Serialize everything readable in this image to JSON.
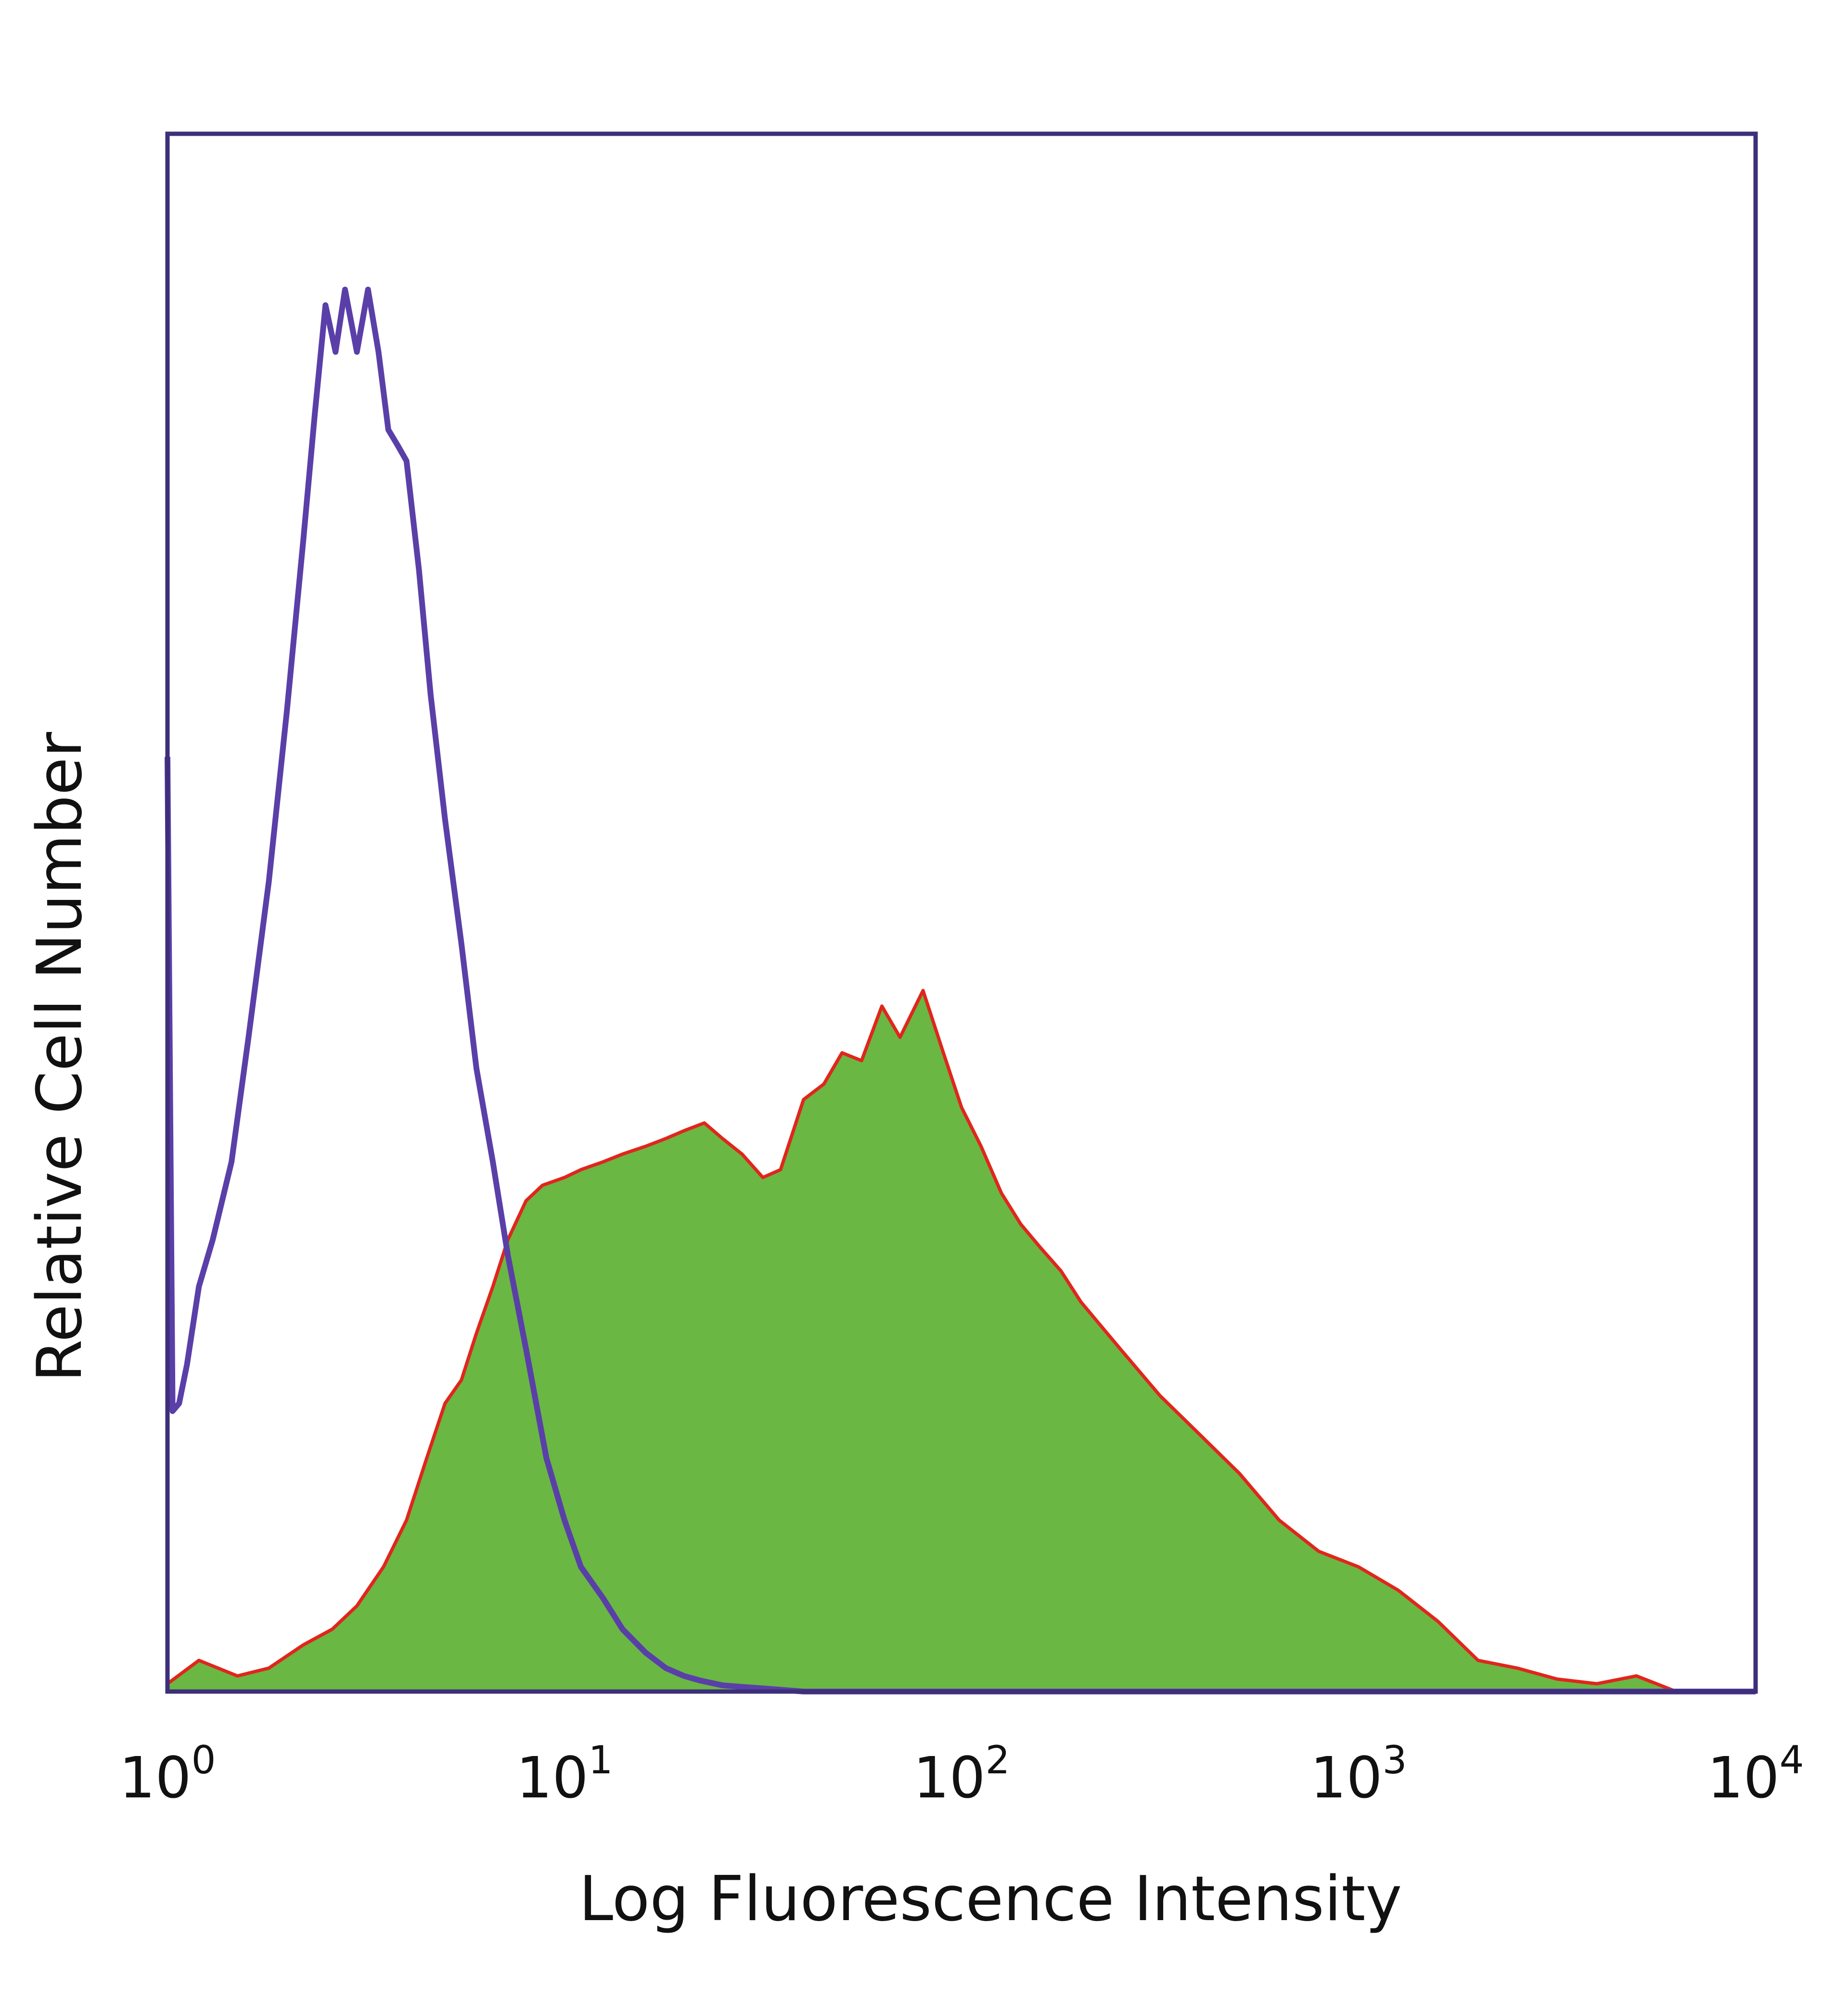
{
  "chart_data": {
    "type": "area",
    "title": "",
    "xlabel": "Log Fluorescence Intensity",
    "ylabel": "Relative Cell Number",
    "x_scale": "log",
    "xlim": [
      1,
      10000
    ],
    "ylim": [
      0,
      100
    ],
    "grid": false,
    "legend": "none",
    "x_ticks": [
      {
        "base": "10",
        "exp": "0",
        "value": 1
      },
      {
        "base": "10",
        "exp": "1",
        "value": 10
      },
      {
        "base": "10",
        "exp": "2",
        "value": 100
      },
      {
        "base": "10",
        "exp": "3",
        "value": 1000
      },
      {
        "base": "10",
        "exp": "4",
        "value": 10000
      }
    ],
    "series": [
      {
        "kind": "filled",
        "fill_color": "#6ab744",
        "edge_color": "#e0261c",
        "x": [
          1.0,
          1.2,
          1.5,
          1.8,
          2.2,
          2.6,
          3.0,
          3.5,
          4.0,
          4.5,
          5.0,
          5.5,
          6.0,
          6.6,
          7.2,
          8.0,
          8.8,
          10,
          11,
          12.5,
          14,
          16,
          18,
          20,
          22.5,
          25,
          28,
          31.6,
          35,
          40,
          45,
          50,
          56,
          63,
          70,
          80,
          90,
          100,
          112,
          126,
          141,
          158,
          178,
          200,
          251,
          316,
          398,
          501,
          631,
          794,
          1000,
          1259,
          1585,
          2000,
          2512,
          3162,
          3981,
          5012,
          6310,
          7943,
          10000
        ],
        "y": [
          0.5,
          2.0,
          1.0,
          1.5,
          3.0,
          4.0,
          5.5,
          8.0,
          11.0,
          15.0,
          18.5,
          20.0,
          23.0,
          26.0,
          29.0,
          31.5,
          32.5,
          33.0,
          33.5,
          34.0,
          34.5,
          35.0,
          35.5,
          36.0,
          36.5,
          35.5,
          34.5,
          33.0,
          33.5,
          38.0,
          39.0,
          41.0,
          40.5,
          44.0,
          42.0,
          45.0,
          41.0,
          37.5,
          35.0,
          32.0,
          30.0,
          28.5,
          27.0,
          25.0,
          22.0,
          19.0,
          16.5,
          14.0,
          11.0,
          9.0,
          8.0,
          6.5,
          4.5,
          2.0,
          1.5,
          0.8,
          0.5,
          1.0,
          0.0,
          0.0,
          0.0
        ]
      },
      {
        "kind": "outline",
        "line_color": "#5a3fa8",
        "x": [
          1.0,
          1.03,
          1.07,
          1.12,
          1.2,
          1.3,
          1.45,
          1.6,
          1.8,
          2.0,
          2.2,
          2.35,
          2.5,
          2.65,
          2.8,
          3.0,
          3.2,
          3.4,
          3.6,
          3.8,
          4.0,
          4.3,
          4.6,
          5.0,
          5.5,
          6.0,
          6.6,
          7.2,
          8.0,
          9.0,
          10,
          11,
          12.5,
          14,
          16,
          18,
          20,
          22,
          25,
          28,
          31.6,
          40,
          100,
          1000,
          10000
        ],
        "y": [
          60.0,
          18.0,
          18.5,
          21.0,
          26.0,
          29.0,
          34.0,
          42.0,
          52.0,
          63.0,
          74.0,
          82.0,
          89.0,
          86.0,
          90.0,
          86.0,
          90.0,
          86.0,
          81.0,
          80.0,
          79.0,
          72.0,
          64.0,
          56.0,
          48.0,
          40.0,
          34.0,
          28.0,
          22.0,
          15.0,
          11.0,
          8.0,
          6.0,
          4.0,
          2.5,
          1.5,
          1.0,
          0.7,
          0.4,
          0.3,
          0.2,
          0.0,
          0.0,
          0.0,
          0.0
        ]
      }
    ]
  }
}
